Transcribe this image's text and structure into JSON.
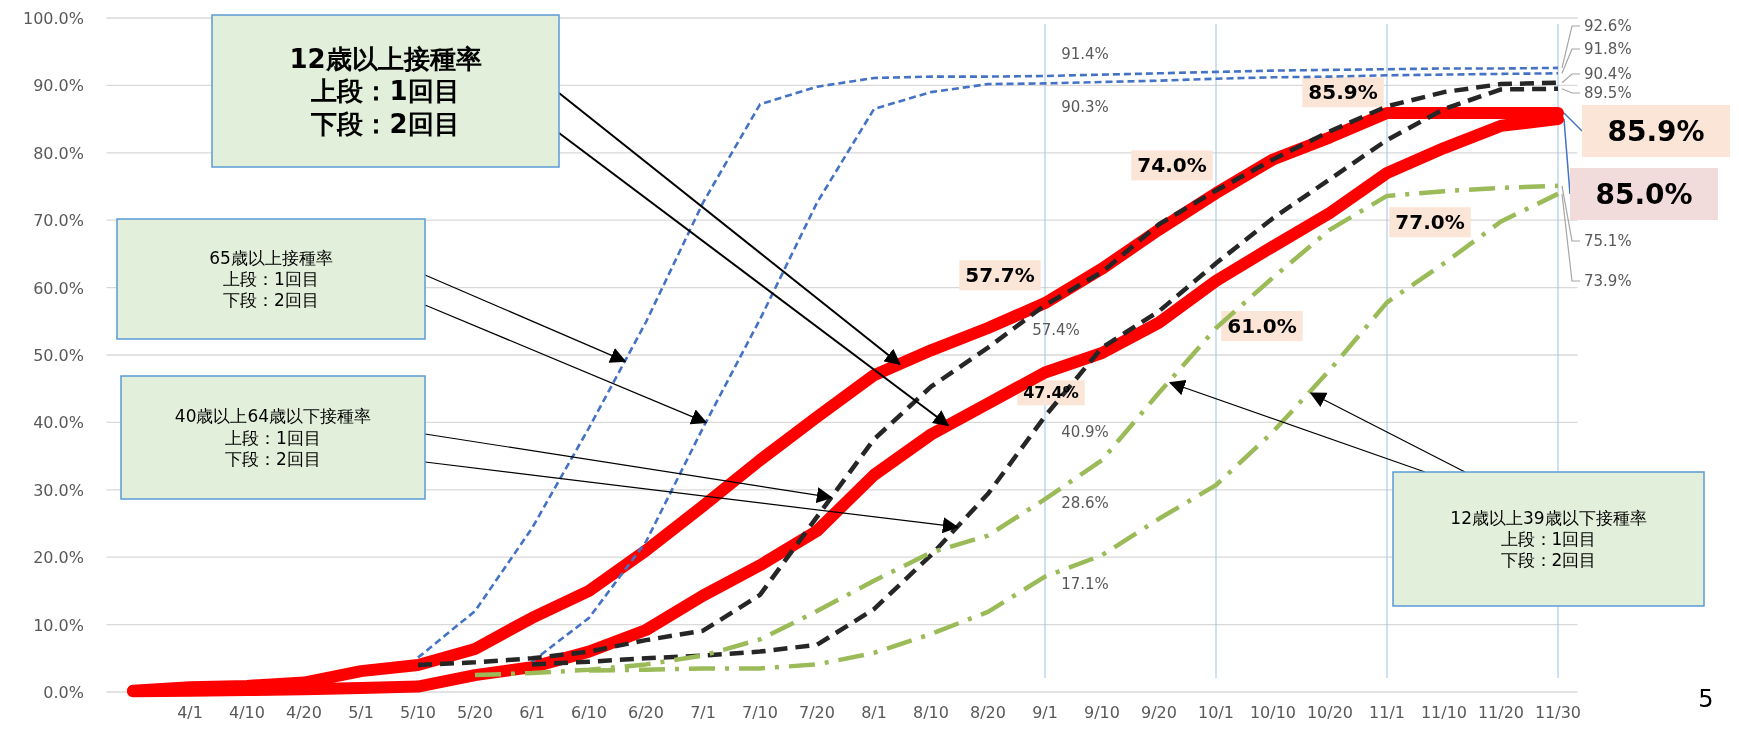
{
  "chart_data": {
    "type": "line",
    "categories": [
      null,
      "4/1",
      "4/10",
      "4/20",
      "5/1",
      "5/10",
      "5/20",
      "6/1",
      "6/10",
      "6/20",
      "7/1",
      "7/10",
      "7/20",
      "8/1",
      "8/10",
      "8/20",
      "9/1",
      "9/10",
      "9/20",
      "10/1",
      "10/10",
      "10/20",
      "11/1",
      "11/10",
      "11/20",
      "11/30"
    ],
    "ylim": [
      0,
      100
    ],
    "yticks": [
      {
        "value": 0,
        "label": "0.0%"
      },
      {
        "value": 10,
        "label": "10.0%"
      },
      {
        "value": 20,
        "label": "20.0%"
      },
      {
        "value": 30,
        "label": "30.0%"
      },
      {
        "value": 40,
        "label": "40.0%"
      },
      {
        "value": 50,
        "label": "50.0%"
      },
      {
        "value": 60,
        "label": "60.0%"
      },
      {
        "value": 70,
        "label": "70.0%"
      },
      {
        "value": 80,
        "label": "80.0%"
      },
      {
        "value": 90,
        "label": "90.0%"
      },
      {
        "value": 100,
        "label": "100.0%"
      }
    ],
    "grid": "y",
    "series": [
      {
        "color": "#ff0000",
        "line_style": "solid",
        "values": [
          0.2,
          0.7,
          0.9,
          1.4,
          3.1,
          4.0,
          6.4,
          11.0,
          15.0,
          21.0,
          27.6,
          34.4,
          40.8,
          47.0,
          50.7,
          54.0,
          57.7,
          62.8,
          68.6,
          74.0,
          79.0,
          82.3,
          85.9,
          85.9,
          85.9,
          85.9
        ],
        "value_labels": [
          null,
          null,
          null,
          null,
          null,
          null,
          null,
          null,
          null,
          null,
          null,
          null,
          null,
          null,
          null,
          null,
          "57.7%",
          null,
          null,
          "74.0%",
          null,
          null,
          "85.9%",
          null,
          null,
          "85.9%"
        ]
      },
      {
        "color": "#ff0000",
        "line_style": "solid",
        "values": [
          0.1,
          0.2,
          0.3,
          0.4,
          0.6,
          0.8,
          2.5,
          3.7,
          6.0,
          9.2,
          14.3,
          18.8,
          23.9,
          32.2,
          38.2,
          42.8,
          47.4,
          50.3,
          54.8,
          61.0,
          66.1,
          71.1,
          77.0,
          80.7,
          84.0,
          85.0
        ],
        "value_labels": [
          null,
          null,
          null,
          null,
          null,
          null,
          null,
          null,
          null,
          null,
          null,
          null,
          null,
          null,
          null,
          null,
          "47.4%",
          null,
          null,
          "61.0%",
          null,
          null,
          "77.0%",
          null,
          null,
          "85.0%"
        ]
      },
      {
        "color": "#4472c4",
        "line_style": "dashed",
        "values": [
          null,
          null,
          null,
          null,
          null,
          5.1,
          12.0,
          24.3,
          39.2,
          54.9,
          72.6,
          87.2,
          89.8,
          91.1,
          91.3,
          91.3,
          91.4,
          91.6,
          91.8,
          92.0,
          92.2,
          92.3,
          92.4,
          92.5,
          92.5,
          92.6
        ],
        "value_labels": [
          null,
          null,
          null,
          null,
          null,
          null,
          null,
          null,
          null,
          null,
          null,
          null,
          null,
          null,
          null,
          null,
          "91.4%",
          null,
          null,
          null,
          null,
          null,
          null,
          null,
          null,
          "92.6%"
        ]
      },
      {
        "color": "#4472c4",
        "line_style": "dashed",
        "values": [
          null,
          null,
          null,
          null,
          null,
          null,
          null,
          4.5,
          11.0,
          22.3,
          39.2,
          55.3,
          72.6,
          86.5,
          89.0,
          90.2,
          90.3,
          90.5,
          90.7,
          91.0,
          91.2,
          91.3,
          91.5,
          91.6,
          91.7,
          91.8
        ],
        "value_labels": [
          null,
          null,
          null,
          null,
          null,
          null,
          null,
          null,
          null,
          null,
          null,
          null,
          null,
          null,
          null,
          null,
          "90.3%",
          null,
          null,
          null,
          null,
          null,
          null,
          null,
          null,
          "91.8%"
        ]
      },
      {
        "color": "#262626",
        "line_style": "dashed",
        "values": [
          null,
          null,
          null,
          null,
          null,
          4.0,
          4.4,
          5.0,
          6.0,
          7.7,
          9.1,
          14.4,
          26.0,
          37.5,
          45.3,
          51.1,
          57.4,
          62.3,
          69.4,
          74.4,
          79.0,
          83.2,
          86.9,
          89.0,
          90.2,
          90.4
        ],
        "value_labels": [
          null,
          null,
          null,
          null,
          null,
          null,
          null,
          null,
          null,
          null,
          null,
          null,
          null,
          null,
          null,
          null,
          "57.4%",
          null,
          null,
          null,
          null,
          null,
          null,
          null,
          null,
          "90.4%"
        ]
      },
      {
        "color": "#262626",
        "line_style": "dashed",
        "values": [
          null,
          null,
          null,
          null,
          null,
          null,
          null,
          4.1,
          4.5,
          5.0,
          5.4,
          6.0,
          7.0,
          12.3,
          20.3,
          29.4,
          40.9,
          51.1,
          56.5,
          63.6,
          70.3,
          76.1,
          81.9,
          86.5,
          89.4,
          89.5
        ],
        "value_labels": [
          null,
          null,
          null,
          null,
          null,
          null,
          null,
          null,
          null,
          null,
          null,
          null,
          null,
          null,
          null,
          null,
          "40.9%",
          null,
          null,
          null,
          null,
          null,
          null,
          null,
          null,
          "89.5%"
        ]
      },
      {
        "color": "#9bbb59",
        "line_style": "dashdot",
        "values": [
          null,
          null,
          null,
          null,
          null,
          null,
          2.5,
          2.8,
          3.3,
          4.1,
          5.4,
          7.8,
          12.0,
          16.5,
          20.7,
          23.2,
          28.6,
          34.4,
          44.4,
          54.0,
          61.5,
          68.6,
          73.6,
          74.3,
          74.8,
          75.1
        ],
        "value_labels": [
          null,
          null,
          null,
          null,
          null,
          null,
          null,
          null,
          null,
          null,
          null,
          null,
          null,
          null,
          null,
          null,
          "28.6%",
          null,
          null,
          null,
          null,
          null,
          null,
          null,
          null,
          "75.1%"
        ]
      },
      {
        "color": "#9bbb59",
        "line_style": "dashdot",
        "values": [
          null,
          null,
          null,
          null,
          null,
          null,
          null,
          null,
          3.2,
          3.3,
          3.5,
          3.5,
          4.1,
          5.8,
          8.6,
          11.9,
          17.1,
          20.3,
          25.7,
          30.7,
          38.6,
          47.8,
          57.8,
          63.6,
          69.8,
          73.9
        ],
        "value_labels": [
          null,
          null,
          null,
          null,
          null,
          null,
          null,
          null,
          null,
          null,
          null,
          null,
          null,
          null,
          null,
          null,
          "17.1%",
          null,
          null,
          null,
          null,
          null,
          null,
          null,
          null,
          "73.9%"
        ]
      }
    ],
    "ref_lines": [
      {
        "axis": "x",
        "value": "9/1",
        "color": "#9dc3e6"
      },
      {
        "axis": "x",
        "value": "10/1",
        "color": "#9dc3e6"
      },
      {
        "axis": "x",
        "value": "11/1",
        "color": "#9dc3e6"
      },
      {
        "axis": "x",
        "value": "11/30",
        "color": "#9dc3e6"
      }
    ],
    "annotations": [
      "12歳以上接種率",
      "上段：1回目",
      "下段：2回目",
      "65歳以上接種率",
      "上段：1回目",
      "下段：2回目",
      "40歳以上64歳以下接種率",
      "上段：1回目",
      "下段：2回目",
      "12歳以上39歳以下接種率",
      "上段：1回目",
      "下段：2回目",
      "5"
    ]
  }
}
